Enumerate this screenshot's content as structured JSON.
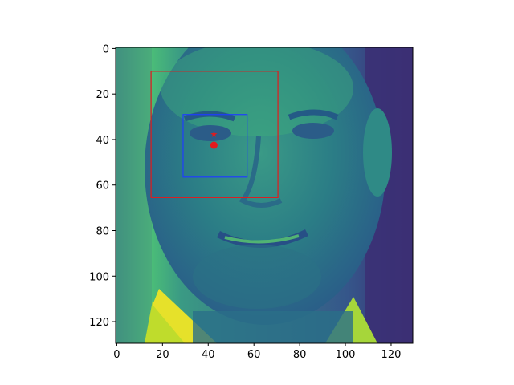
{
  "image": {
    "description_icon": "face-photo-icon",
    "colormap": "viridis",
    "value_range": [
      0,
      130
    ]
  },
  "axes": {
    "x_ticks": [
      "0",
      "20",
      "40",
      "60",
      "80",
      "100",
      "120"
    ],
    "y_ticks": [
      "0",
      "20",
      "40",
      "60",
      "80",
      "100",
      "120"
    ],
    "x_tick_values": [
      0,
      20,
      40,
      60,
      80,
      100,
      120
    ],
    "y_tick_values": [
      0,
      20,
      40,
      60,
      80,
      100,
      120
    ],
    "xlim": [
      -0.5,
      129.5
    ],
    "ylim": [
      129.5,
      -0.5
    ]
  },
  "overlays": {
    "outer_box": {
      "color": "#e31a1c",
      "x0": 15,
      "y0": 10,
      "x1": 70.5,
      "y1": 65.5
    },
    "inner_box": {
      "color": "#1f3dff",
      "x0": 29,
      "y0": 29,
      "x1": 57,
      "y1": 56.5
    },
    "eye_point": {
      "color": "#e31a1c",
      "x": 42.5,
      "y": 42.5
    },
    "eye_marker": {
      "color": "#e31a1c",
      "x": 42.5,
      "y": 37.5
    }
  }
}
